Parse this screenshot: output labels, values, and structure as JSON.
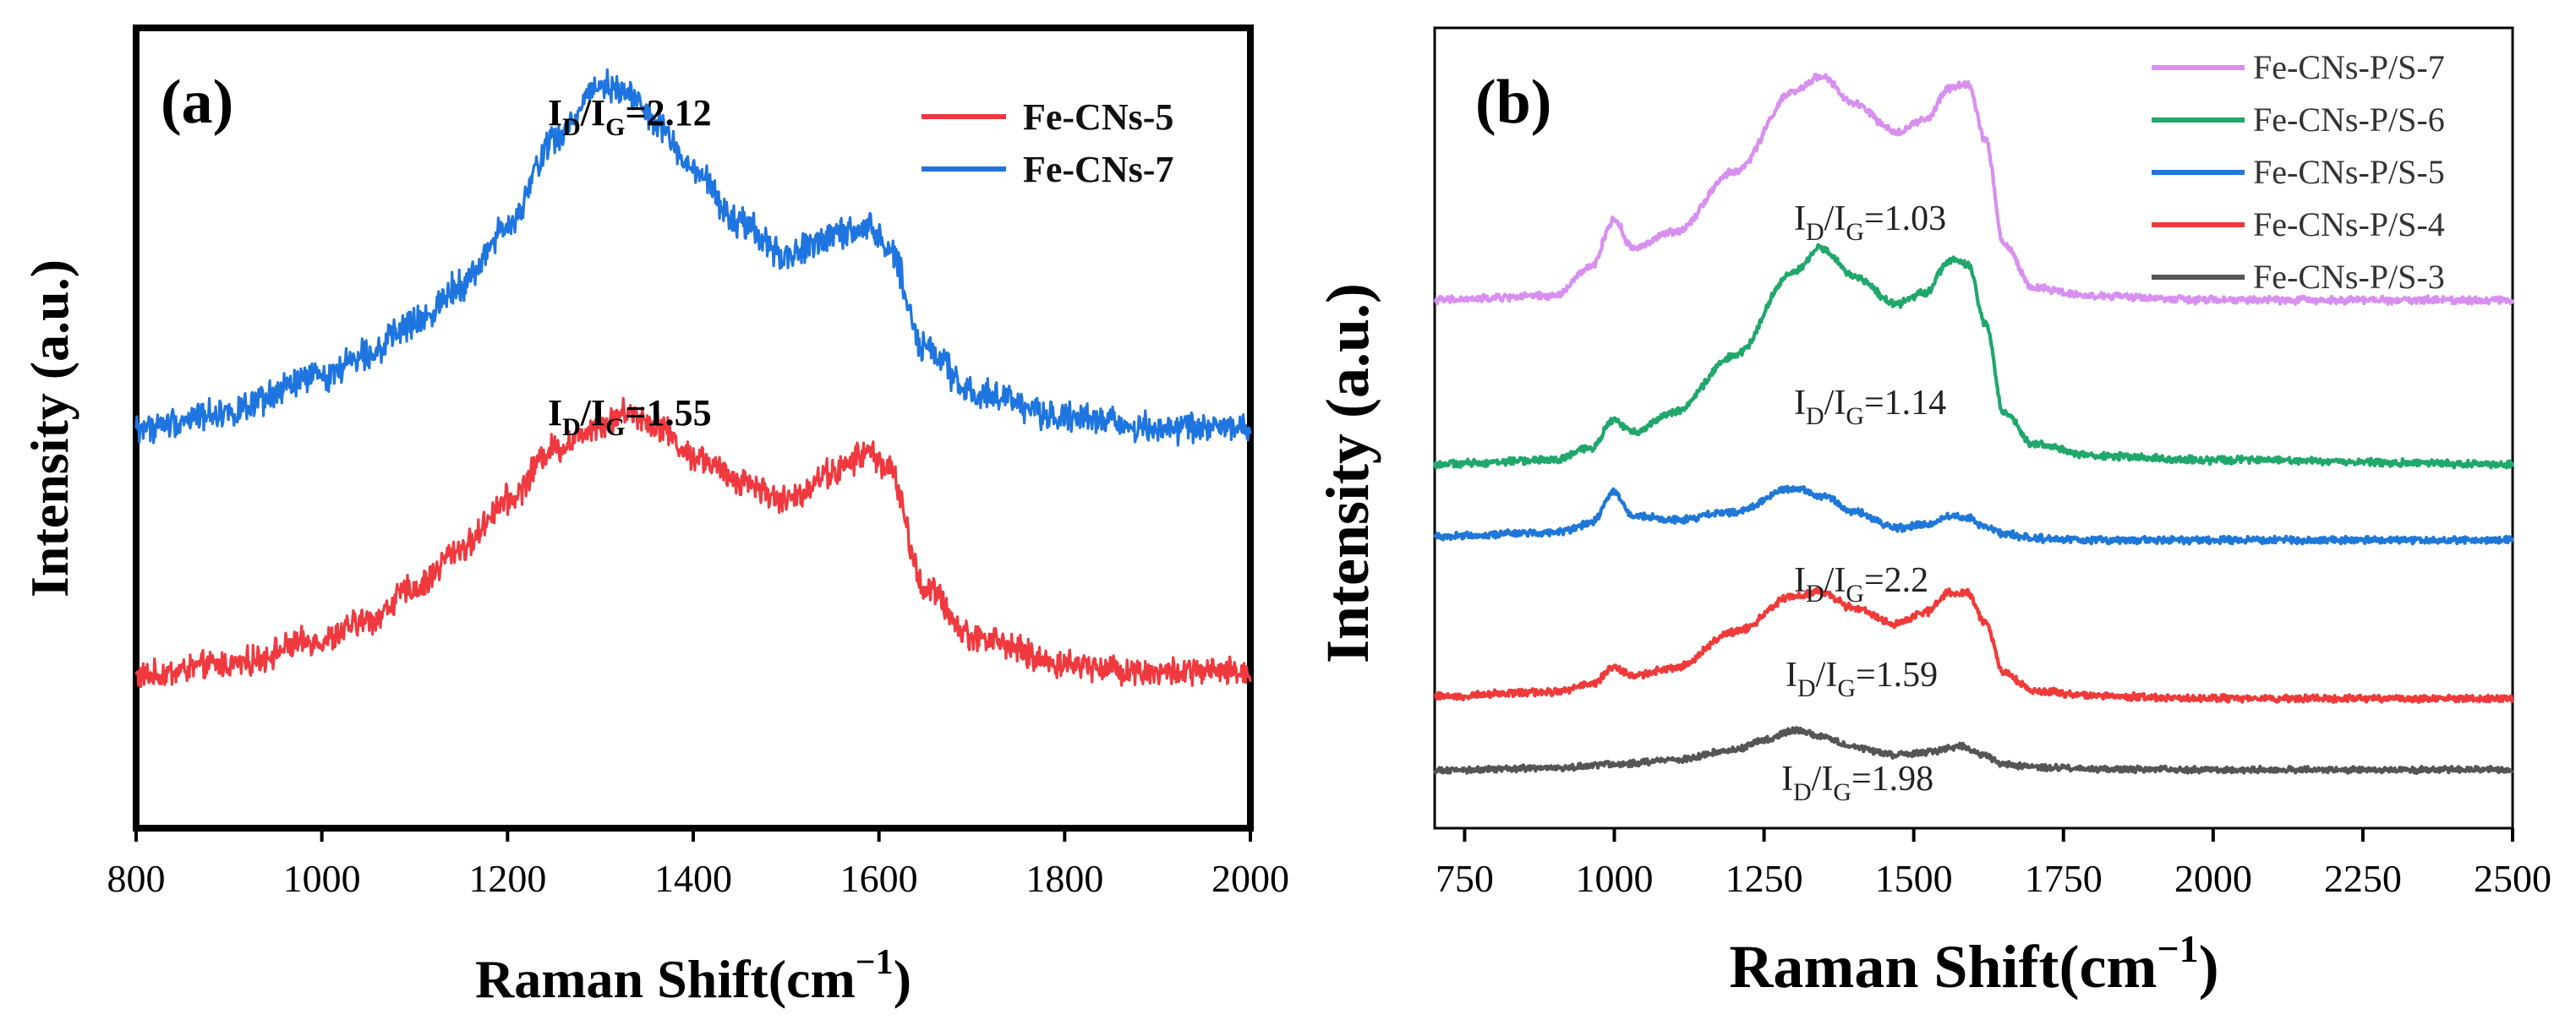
{
  "chart_data": [
    {
      "panel": "(a)",
      "type": "line",
      "xlabel": "Raman Shift(cm",
      "xlabel_sup": "−1",
      "xlabel_close": ")",
      "ylabel": "Intensity (a.u.)",
      "xlim": [
        800,
        2000
      ],
      "ylim": [
        0,
        10
      ],
      "xticks": [
        800,
        1000,
        1200,
        1400,
        1600,
        1800,
        2000
      ],
      "xtick_labels": [
        "800",
        "1000",
        "1200",
        "1400",
        "1600",
        "1800",
        "2000"
      ],
      "legend_position": "top-right",
      "series": [
        {
          "name": "Fe-CNs-5",
          "color": "#f0393f",
          "noise": 0.14,
          "x": [
            800,
            900,
            1000,
            1050,
            1100,
            1150,
            1200,
            1250,
            1300,
            1330,
            1360,
            1400,
            1450,
            1500,
            1550,
            1590,
            1610,
            1650,
            1700,
            1800,
            1900,
            2000
          ],
          "y": [
            1.9,
            2.05,
            2.35,
            2.6,
            3.0,
            3.5,
            4.1,
            4.75,
            5.05,
            5.2,
            5.05,
            4.65,
            4.35,
            4.1,
            4.45,
            4.7,
            4.5,
            3.0,
            2.4,
            2.05,
            1.95,
            1.95
          ]
        },
        {
          "name": "Fe-CNs-7",
          "color": "#1f75e0",
          "noise": 0.15,
          "x": [
            800,
            900,
            1000,
            1050,
            1100,
            1150,
            1200,
            1250,
            1300,
            1330,
            1360,
            1400,
            1450,
            1500,
            1550,
            1590,
            1610,
            1650,
            1700,
            1800,
            1900,
            2000
          ],
          "y": [
            5.0,
            5.2,
            5.65,
            5.95,
            6.3,
            6.8,
            7.5,
            8.6,
            9.3,
            9.2,
            8.8,
            8.2,
            7.55,
            7.15,
            7.4,
            7.5,
            7.25,
            6.0,
            5.45,
            5.15,
            5.0,
            5.0
          ]
        }
      ],
      "annotations": [
        {
          "main": "I",
          "sub1": "D",
          "mid": "/I",
          "sub2": "G",
          "tail": "=2.12"
        },
        {
          "main": "I",
          "sub1": "D",
          "mid": "/I",
          "sub2": "G",
          "tail": "=1.55"
        }
      ]
    },
    {
      "panel": "(b)",
      "type": "line",
      "xlabel": "Raman Shift(cm",
      "xlabel_sup": "−1",
      "xlabel_close": ")",
      "ylabel": "Intensity (a.u.)",
      "xlim": [
        700,
        2500
      ],
      "ylim": [
        0,
        10
      ],
      "xticks": [
        750,
        1000,
        1250,
        1500,
        1750,
        2000,
        2250,
        2500
      ],
      "xtick_labels": [
        "750",
        "1000",
        "1250",
        "1500",
        "1750",
        "2000",
        "2250",
        "2500"
      ],
      "legend_position": "top-right",
      "series": [
        {
          "name": "Fe-CNs-P/S-7",
          "color": "#d88ff0",
          "noise": 0.035,
          "x": [
            700,
            900,
            960,
            1000,
            1030,
            1100,
            1200,
            1300,
            1345,
            1400,
            1470,
            1520,
            1560,
            1590,
            1620,
            1650,
            1700,
            1800,
            2000,
            2500
          ],
          "y": [
            6.6,
            6.65,
            7.0,
            7.6,
            7.25,
            7.45,
            8.2,
            9.2,
            9.4,
            9.05,
            8.7,
            8.85,
            9.25,
            9.3,
            8.6,
            7.3,
            6.75,
            6.65,
            6.6,
            6.6
          ]
        },
        {
          "name": "Fe-CNs-P/S-6",
          "color": "#1fa86a",
          "noise": 0.035,
          "x": [
            700,
            900,
            960,
            1000,
            1030,
            1100,
            1200,
            1300,
            1345,
            1400,
            1470,
            1520,
            1560,
            1590,
            1620,
            1650,
            1700,
            1800,
            2000,
            2500
          ],
          "y": [
            4.55,
            4.6,
            4.75,
            5.1,
            4.95,
            5.2,
            5.9,
            6.95,
            7.25,
            6.9,
            6.55,
            6.7,
            7.1,
            7.05,
            6.3,
            5.2,
            4.8,
            4.65,
            4.6,
            4.55
          ]
        },
        {
          "name": "Fe-CNs-P/S-5",
          "color": "#1f78d8",
          "noise": 0.035,
          "x": [
            700,
            900,
            960,
            1000,
            1030,
            1100,
            1200,
            1300,
            1350,
            1400,
            1470,
            1520,
            1560,
            1590,
            1620,
            1650,
            1700,
            1800,
            2000,
            2500
          ],
          "y": [
            3.65,
            3.7,
            3.8,
            4.2,
            3.9,
            3.85,
            3.95,
            4.25,
            4.15,
            3.95,
            3.75,
            3.8,
            3.9,
            3.88,
            3.75,
            3.68,
            3.62,
            3.6,
            3.6,
            3.6
          ]
        },
        {
          "name": "Fe-CNs-P/S-4",
          "color": "#f03a3a",
          "noise": 0.035,
          "x": [
            700,
            900,
            960,
            1000,
            1030,
            1100,
            1200,
            1300,
            1345,
            1400,
            1470,
            1520,
            1560,
            1590,
            1620,
            1650,
            1700,
            1800,
            2000,
            2500
          ],
          "y": [
            1.65,
            1.7,
            1.8,
            2.0,
            1.9,
            2.0,
            2.45,
            2.9,
            2.95,
            2.75,
            2.55,
            2.7,
            2.95,
            2.95,
            2.55,
            1.95,
            1.72,
            1.65,
            1.62,
            1.62
          ]
        },
        {
          "name": "Fe-CNs-P/S-3",
          "color": "#555555",
          "noise": 0.03,
          "x": [
            700,
            900,
            1000,
            1100,
            1200,
            1250,
            1300,
            1350,
            1400,
            1470,
            1520,
            1580,
            1620,
            1650,
            1700,
            1800,
            2000,
            2500
          ],
          "y": [
            0.72,
            0.75,
            0.8,
            0.85,
            0.98,
            1.1,
            1.22,
            1.15,
            1.0,
            0.92,
            0.95,
            1.02,
            0.9,
            0.8,
            0.76,
            0.74,
            0.73,
            0.73
          ]
        }
      ],
      "annotations": [
        {
          "main": "I",
          "sub1": "D",
          "mid": "/I",
          "sub2": "G",
          "tail": "=1.03"
        },
        {
          "main": "I",
          "sub1": "D",
          "mid": "/I",
          "sub2": "G",
          "tail": "=1.14"
        },
        {
          "main": "I",
          "sub1": "D",
          "mid": "/I",
          "sub2": "G",
          "tail": "=2.2"
        },
        {
          "main": "I",
          "sub1": "D",
          "mid": "/I",
          "sub2": "G",
          "tail": "=1.59"
        },
        {
          "main": "I",
          "sub1": "D",
          "mid": "/I",
          "sub2": "G",
          "tail": "=1.98"
        }
      ]
    }
  ]
}
